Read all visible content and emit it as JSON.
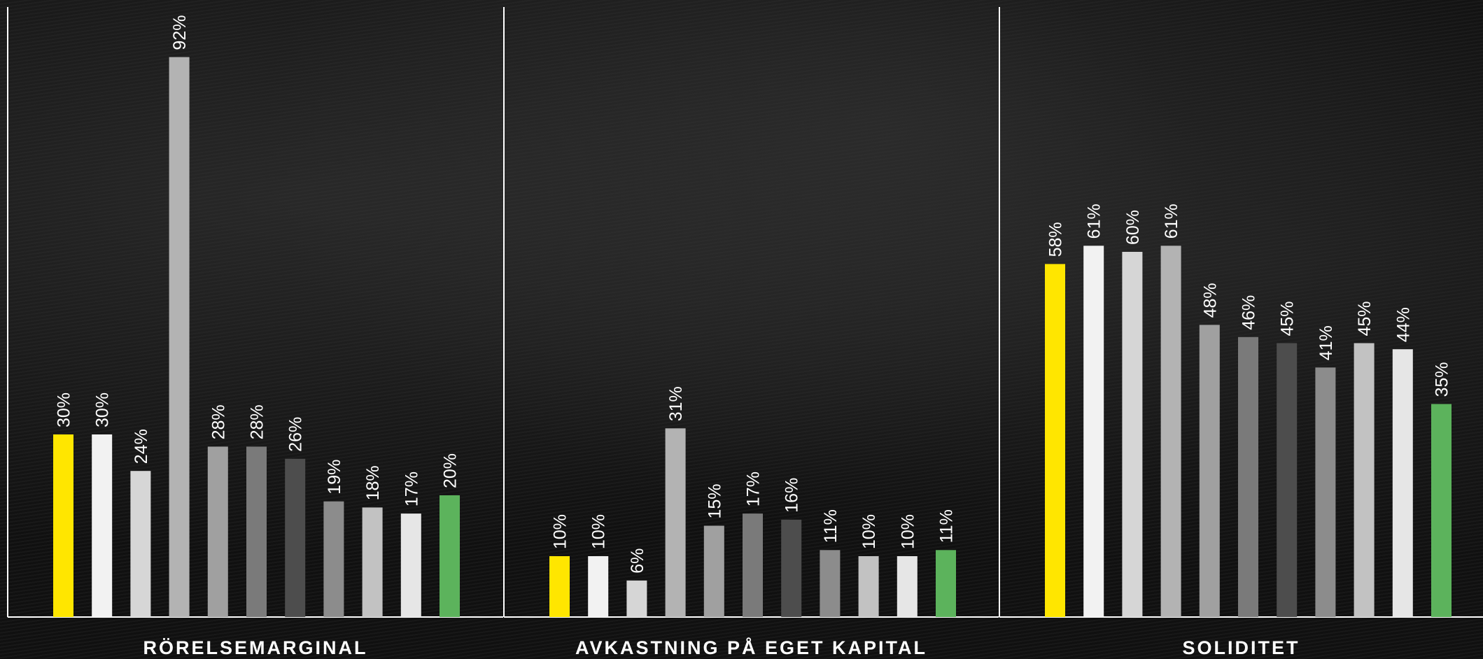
{
  "chart_data": [
    {
      "type": "bar",
      "title": "RÖRELSEMARGINAL",
      "ylim": [
        0,
        100
      ],
      "values": [
        30,
        30,
        24,
        92,
        28,
        28,
        26,
        19,
        18,
        17,
        20
      ],
      "labels": [
        "30%",
        "30%",
        "24%",
        "92%",
        "28%",
        "28%",
        "26%",
        "19%",
        "18%",
        "17%",
        "20%"
      ]
    },
    {
      "type": "bar",
      "title": "AVKASTNING PÅ EGET KAPITAL",
      "ylim": [
        0,
        100
      ],
      "values": [
        10,
        10,
        6,
        31,
        15,
        17,
        16,
        11,
        10,
        10,
        11
      ],
      "labels": [
        "10%",
        "10%",
        "6%",
        "31%",
        "15%",
        "17%",
        "16%",
        "11%",
        "10%",
        "10%",
        "11%"
      ]
    },
    {
      "type": "bar",
      "title": "SOLIDITET",
      "ylim": [
        0,
        100
      ],
      "values": [
        58,
        61,
        60,
        61,
        48,
        46,
        45,
        41,
        45,
        44,
        35
      ],
      "labels": [
        "58%",
        "61%",
        "60%",
        "61%",
        "48%",
        "46%",
        "45%",
        "41%",
        "45%",
        "44%",
        "35%"
      ]
    }
  ],
  "bar_colors": [
    "#ffe600",
    "#f2f2f2",
    "#d6d6d6",
    "#b3b3b3",
    "#a0a0a0",
    "#7a7a7a",
    "#4d4d4d",
    "#8c8c8c",
    "#c2c2c2",
    "#e6e6e6",
    "#5cb35c"
  ],
  "axis_color": "#ffffff"
}
